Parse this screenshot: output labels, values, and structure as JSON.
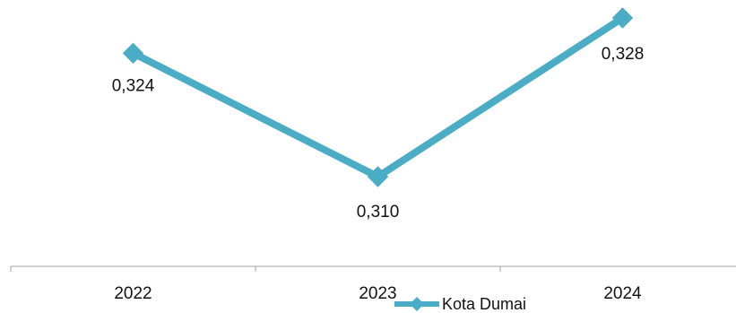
{
  "chart_data": {
    "type": "line",
    "categories": [
      "2022",
      "2023",
      "2024"
    ],
    "series": [
      {
        "name": "Kota Dumai",
        "values": [
          0.324,
          0.31,
          0.328
        ],
        "labels": [
          "0,324",
          "0,310",
          "0,328"
        ],
        "color": "#4bacc6",
        "marker": "diamond"
      }
    ],
    "title": "",
    "xlabel": "",
    "ylabel": "",
    "ylim": [
      0.296,
      0.332
    ],
    "grid": false,
    "legend": "bottom"
  }
}
